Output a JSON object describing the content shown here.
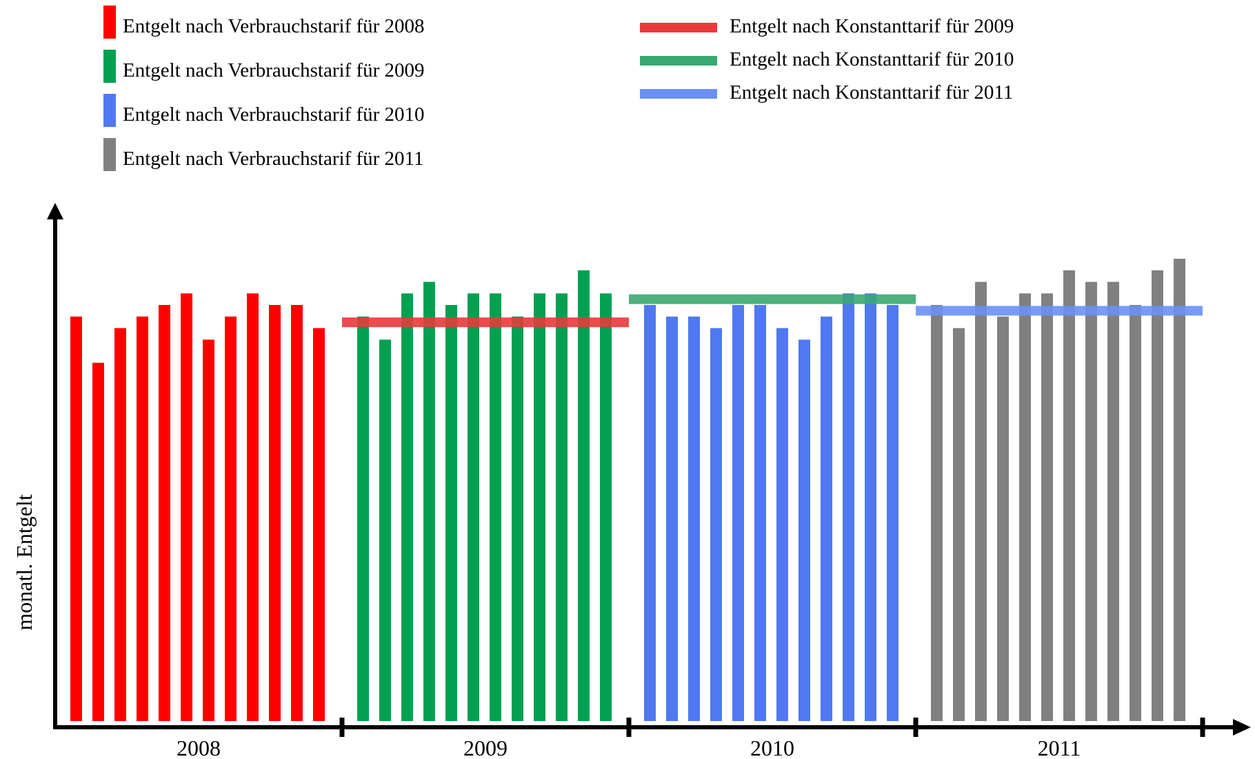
{
  "chart_data": {
    "type": "bar",
    "title": "",
    "ylabel": "monatl. Entgelt",
    "xlabel": "",
    "ylim": [
      0,
      40
    ],
    "grid": false,
    "legend_placement": "top",
    "groups": [
      {
        "label": "2008",
        "series": "Entgelt nach Verbrauchstarif für 2008",
        "color": "#ff0000",
        "values": [
          35,
          31,
          34,
          35,
          36,
          37,
          33,
          35,
          37,
          36,
          36,
          34
        ]
      },
      {
        "label": "2009",
        "series": "Entgelt nach Verbrauchstarif für 2009",
        "color": "#00a050",
        "values": [
          35,
          33,
          37,
          38,
          36,
          37,
          37,
          35,
          37,
          37,
          39,
          37
        ]
      },
      {
        "label": "2010",
        "series": "Entgelt nach Verbrauchstarif für 2010",
        "color": "#5078f0",
        "values": [
          36,
          35,
          35,
          34,
          36,
          36,
          34,
          33,
          35,
          37,
          37,
          36
        ]
      },
      {
        "label": "2011",
        "series": "Entgelt nach Verbrauchstarif für 2011",
        "color": "#808080",
        "values": [
          36,
          34,
          38,
          35,
          37,
          37,
          39,
          38,
          38,
          36,
          39,
          40
        ]
      }
    ],
    "constant_tariffs": [
      {
        "name": "Entgelt nach Konstanttarif für 2009",
        "applies_to": "2009",
        "value": 34.5,
        "color": "#e83a3a"
      },
      {
        "name": "Entgelt nach Konstanttarif für 2010",
        "applies_to": "2010",
        "value": 36.5,
        "color": "#3aa870"
      },
      {
        "name": "Entgelt nach Konstanttarif für 2011",
        "applies_to": "2011",
        "value": 35.5,
        "color": "#6a90f5"
      }
    ]
  },
  "legend": {
    "bars": [
      {
        "label": "Entgelt nach Verbrauchstarif für 2008",
        "color": "#ff0000"
      },
      {
        "label": "Entgelt nach Verbrauchstarif für 2009",
        "color": "#00a050"
      },
      {
        "label": "Entgelt nach Verbrauchstarif für 2010",
        "color": "#5078f0"
      },
      {
        "label": "Entgelt nach Verbrauchstarif für 2011",
        "color": "#808080"
      }
    ],
    "lines": [
      {
        "label": "Entgelt nach Konstanttarif für 2009",
        "color": "#e83a3a"
      },
      {
        "label": "Entgelt nach Konstanttarif für 2010",
        "color": "#3aa870"
      },
      {
        "label": "Entgelt nach Konstanttarif für 2011",
        "color": "#6a90f5"
      }
    ]
  }
}
